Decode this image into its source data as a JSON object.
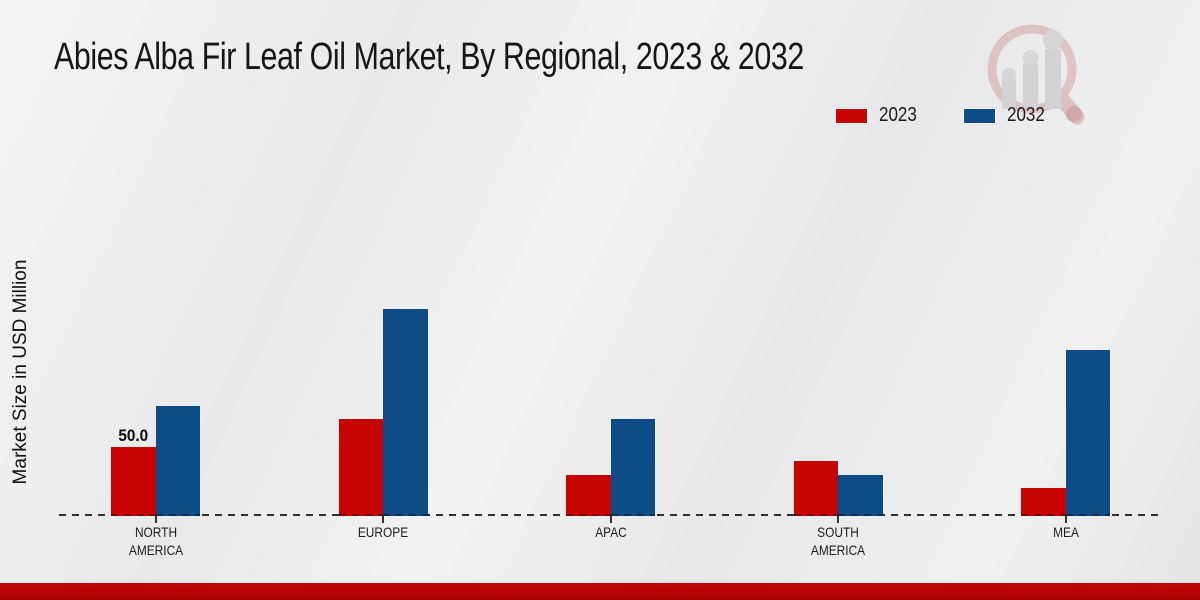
{
  "title": "Abies Alba Fir Leaf Oil Market, By Regional, 2023 & 2032",
  "ylabel": "Market Size in USD Million",
  "legend": [
    {
      "label": "2023",
      "color": "#c80304"
    },
    {
      "label": "2032",
      "color": "#0d4c87"
    }
  ],
  "colors": {
    "series_2023": "#c80304",
    "series_2032": "#0d4c87",
    "footer_strip": "#b10404",
    "axis": "#2f2f2f"
  },
  "icons": {
    "watermark": "magnifier-bar-chart-logo"
  },
  "chart_data": {
    "type": "bar",
    "title": "Abies Alba Fir Leaf Oil Market, By Regional, 2023 & 2032",
    "ylabel": "Market Size in USD Million",
    "xlabel": "",
    "categories": [
      "NORTH\nAMERICA",
      "EUROPE",
      "APAC",
      "SOUTH\nAMERICA",
      "MEA"
    ],
    "series": [
      {
        "name": "2023",
        "color": "#c80304",
        "values": [
          50,
          70,
          30,
          40,
          20
        ]
      },
      {
        "name": "2032",
        "color": "#0d4c87",
        "values": [
          80,
          150,
          70,
          30,
          120
        ]
      }
    ],
    "annotations": [
      {
        "series_index": 0,
        "category_index": 0,
        "text": "50.0"
      }
    ],
    "ylim": [
      0,
      160
    ],
    "grid": false,
    "y_axis_ticks_visible": false,
    "baseline_style": "dashed",
    "legend_position": "top-right"
  }
}
